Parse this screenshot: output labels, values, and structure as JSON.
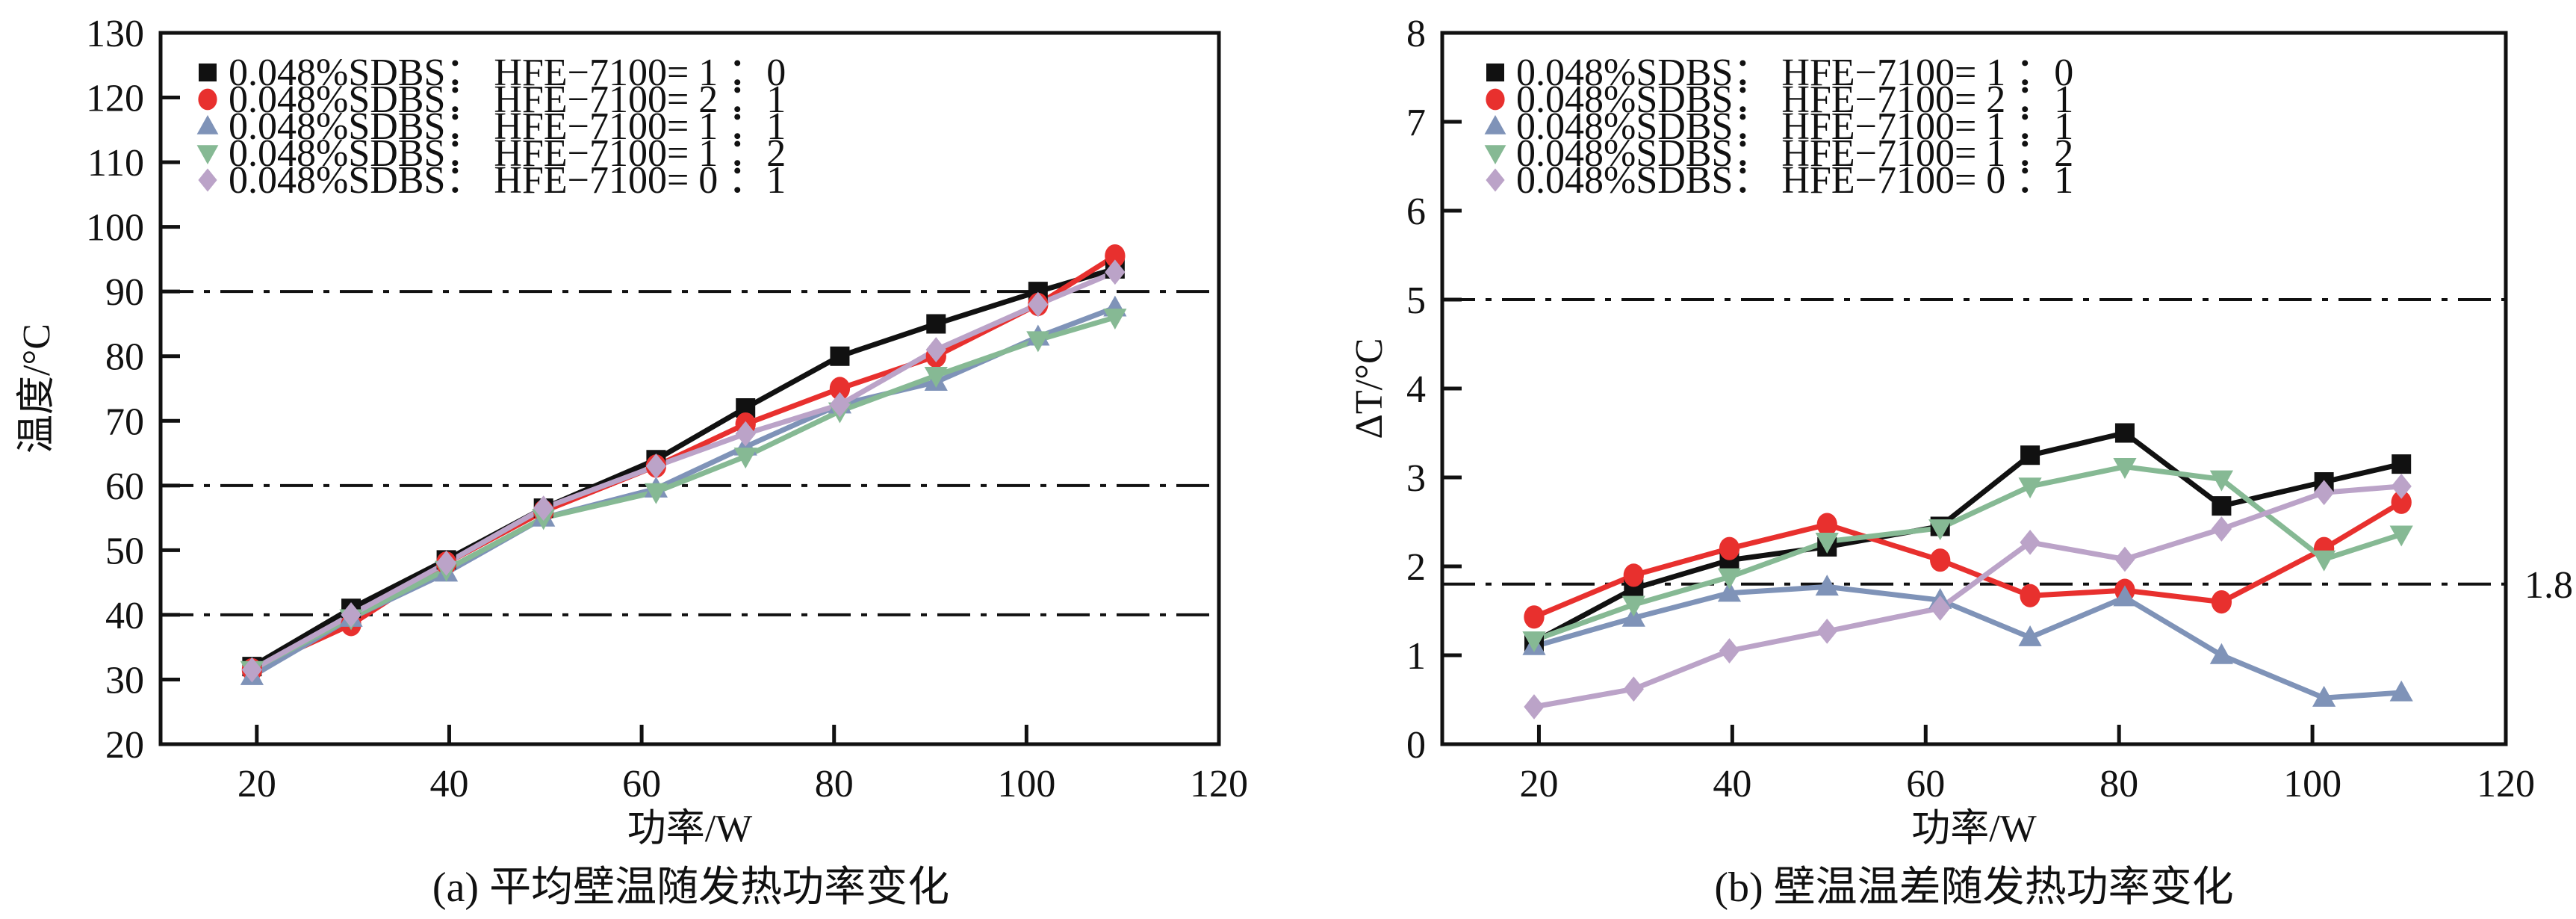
{
  "chart_data": [
    {
      "id": "a",
      "type": "line",
      "caption": "(a) 平均壁温随发热功率变化",
      "xlabel": "功率/W",
      "ylabel": "温度/°C",
      "xlim": [
        10,
        120
      ],
      "ylim": [
        20,
        130
      ],
      "xticks": [
        20,
        40,
        60,
        80,
        100,
        120
      ],
      "yticks": [
        20,
        30,
        40,
        50,
        60,
        70,
        80,
        90,
        100,
        110,
        120,
        130
      ],
      "reference_lines": [
        {
          "y": 90,
          "style": "dash-dot",
          "label": ""
        },
        {
          "y": 60,
          "style": "dash-dot",
          "label": ""
        },
        {
          "y": 40,
          "style": "dash-dot",
          "label": ""
        }
      ],
      "grid": false,
      "legend_position": "top-left",
      "x": [
        19.5,
        29.8,
        39.7,
        49.8,
        61.5,
        70.8,
        80.6,
        90.6,
        101.2,
        109.2
      ],
      "series": [
        {
          "name": "0.048%SDBS： HFE−7100= 1 ：0",
          "marker": "square",
          "color": "#111111",
          "values": [
            32,
            41,
            48.5,
            56.5,
            64,
            72,
            80,
            85,
            90,
            93.5
          ]
        },
        {
          "name": "0.048%SDBS： HFE−7100= 2 ：1",
          "marker": "circle",
          "color": "#e8302e",
          "values": [
            31.5,
            38.5,
            48,
            56,
            63,
            69.5,
            75,
            80,
            88,
            95.5
          ]
        },
        {
          "name": "0.048%SDBS： HFE−7100= 1 ：1",
          "marker": "triangle-up",
          "color": "#7f93b8",
          "values": [
            30.5,
            39.5,
            46.5,
            55,
            59.5,
            66,
            72.5,
            76,
            83,
            87.5
          ]
        },
        {
          "name": "0.048%SDBS： HFE−7100= 1 ：2",
          "marker": "triangle-down",
          "color": "#86b994",
          "values": [
            31.5,
            39.5,
            47,
            55,
            59,
            64.5,
            71.5,
            77,
            82.5,
            86
          ]
        },
        {
          "name": "0.048%SDBS： HFE−7100= 0 ：1",
          "marker": "diamond",
          "color": "#bba3c8",
          "values": [
            31.5,
            40,
            48,
            56.5,
            63,
            68,
            72.5,
            81,
            88,
            93
          ]
        }
      ]
    },
    {
      "id": "b",
      "type": "line",
      "caption": "(b) 壁温温差随发热功率变化",
      "xlabel": "功率/W",
      "ylabel": "ΔT/°C",
      "xlim": [
        10,
        120
      ],
      "ylim": [
        0,
        8
      ],
      "xticks": [
        20,
        40,
        60,
        80,
        100,
        120
      ],
      "yticks": [
        0,
        1,
        2,
        3,
        4,
        5,
        6,
        7,
        8
      ],
      "reference_lines": [
        {
          "y": 5,
          "style": "dash-dot",
          "label": ""
        },
        {
          "y": 1.8,
          "style": "dash-dot",
          "label": "1.8"
        }
      ],
      "grid": false,
      "legend_position": "top-left",
      "x": [
        19.5,
        29.8,
        39.7,
        49.8,
        61.5,
        70.8,
        80.6,
        90.6,
        101.2,
        109.2
      ],
      "series": [
        {
          "name": "0.048%SDBS： HFE−7100= 1 ：0",
          "marker": "square",
          "color": "#111111",
          "values": [
            1.15,
            1.75,
            2.07,
            2.22,
            2.45,
            3.25,
            3.5,
            2.68,
            2.95,
            3.15
          ]
        },
        {
          "name": "0.048%SDBS： HFE−7100= 2 ：1",
          "marker": "circle",
          "color": "#e8302e",
          "values": [
            1.43,
            1.9,
            2.2,
            2.47,
            2.07,
            1.67,
            1.73,
            1.6,
            2.2,
            2.72
          ]
        },
        {
          "name": "0.048%SDBS： HFE−7100= 1 ：1",
          "marker": "triangle-up",
          "color": "#7f93b8",
          "values": [
            1.1,
            1.42,
            1.7,
            1.77,
            1.62,
            1.2,
            1.65,
            1.0,
            0.52,
            0.58
          ]
        },
        {
          "name": "0.048%SDBS： HFE−7100= 1 ：2",
          "marker": "triangle-down",
          "color": "#86b994",
          "values": [
            1.17,
            1.57,
            1.88,
            2.28,
            2.43,
            2.9,
            3.12,
            2.98,
            2.08,
            2.36
          ]
        },
        {
          "name": "0.048%SDBS： HFE−7100= 0 ：1",
          "marker": "diamond",
          "color": "#bba3c8",
          "values": [
            0.42,
            0.62,
            1.05,
            1.27,
            1.53,
            2.27,
            2.08,
            2.42,
            2.83,
            2.9
          ]
        }
      ]
    }
  ]
}
